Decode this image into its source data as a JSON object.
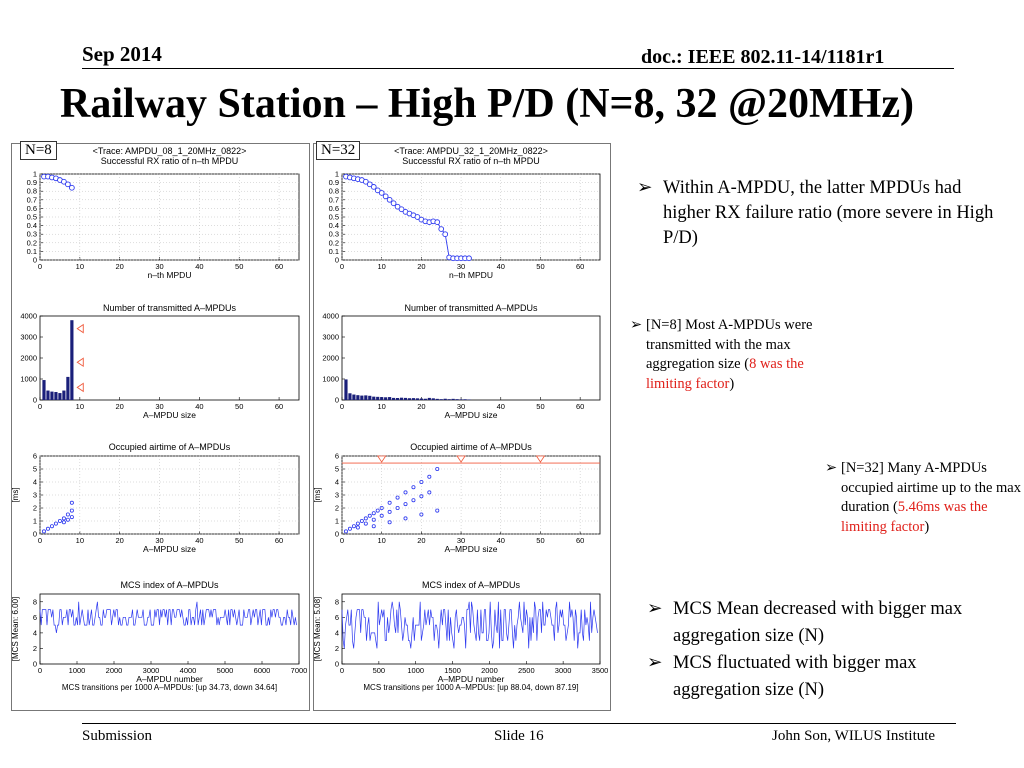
{
  "header": {
    "date": "Sep 2014",
    "doc": "doc.: IEEE 802.11-14/1181r1"
  },
  "title": "Railway Station – High P/D (N=8, 32 @20MHz)",
  "tags": {
    "left": "N=8",
    "right": "N=32"
  },
  "colors": {
    "series": "#2d39f0",
    "bar": "#1a1f7a",
    "accent_red": "#e0201a",
    "marker": "#f05a3c"
  },
  "bullets": {
    "b1": "Within A-MPDU, the latter MPDUs had higher RX failure ratio (more severe in High P/D)",
    "b2_pre": "[N=8] Most A-MPDUs were transmitted with the max aggregation size (",
    "b2_red": "8 was the limiting factor",
    "b2_post": ")",
    "b3_pre": "[N=32] Many A-MPDUs occupied airtime up to the max duration (",
    "b3_red": "5.46ms was the limiting factor",
    "b3_post": ")",
    "b4": "MCS Mean decreased with bigger max aggregation size (N)",
    "b5": "MCS fluctuated with bigger max aggregation size (N)"
  },
  "footer": {
    "left": "Submission",
    "center": "Slide 16",
    "right": "John Son, WILUS Institute"
  },
  "chart_data": [
    {
      "type": "scatter",
      "panel": "N=8",
      "title": "<Trace: AMPDU_08_1_20MHz_0822>",
      "subtitle": "Successful RX ratio of n–th MPDU",
      "xlabel": "n–th MPDU",
      "ylabel": "",
      "xlim": [
        0,
        65
      ],
      "ylim": [
        0,
        1
      ],
      "xticks": [
        "0",
        "10",
        "20",
        "30",
        "40",
        "50",
        "60"
      ],
      "yticks": [
        "0",
        "0.1",
        "0.2",
        "0.3",
        "0.4",
        "0.5",
        "0.6",
        "0.7",
        "0.8",
        "0.9",
        "1"
      ],
      "x": [
        1,
        2,
        3,
        4,
        5,
        6,
        7,
        8
      ],
      "y": [
        0.97,
        0.97,
        0.96,
        0.95,
        0.93,
        0.91,
        0.88,
        0.84
      ]
    },
    {
      "type": "scatter",
      "panel": "N=32",
      "title": "<Trace: AMPDU_32_1_20MHz_0822>",
      "subtitle": "Successful RX ratio of n–th MPDU",
      "xlabel": "n–th MPDU",
      "ylabel": "",
      "xlim": [
        0,
        65
      ],
      "ylim": [
        0,
        1
      ],
      "xticks": [
        "0",
        "10",
        "20",
        "30",
        "40",
        "50",
        "60"
      ],
      "yticks": [
        "0",
        "0.1",
        "0.2",
        "0.3",
        "0.4",
        "0.5",
        "0.6",
        "0.7",
        "0.8",
        "0.9",
        "1"
      ],
      "x": [
        1,
        2,
        3,
        4,
        5,
        6,
        7,
        8,
        9,
        10,
        11,
        12,
        13,
        14,
        15,
        16,
        17,
        18,
        19,
        20,
        21,
        22,
        23,
        24,
        25,
        26,
        27,
        28,
        29,
        30,
        31,
        32
      ],
      "y": [
        0.97,
        0.96,
        0.95,
        0.94,
        0.93,
        0.91,
        0.88,
        0.85,
        0.81,
        0.78,
        0.74,
        0.7,
        0.66,
        0.62,
        0.59,
        0.56,
        0.54,
        0.52,
        0.5,
        0.47,
        0.45,
        0.44,
        0.45,
        0.44,
        0.36,
        0.3,
        0.03,
        0.02,
        0.02,
        0.02,
        0.02,
        0.02
      ]
    },
    {
      "type": "bar",
      "panel": "N=8",
      "title": "Number of transmitted A–MPDUs",
      "xlabel": "A–MPDU size",
      "ylabel": "",
      "xlim": [
        0,
        65
      ],
      "ylim": [
        0,
        4000
      ],
      "xticks": [
        "0",
        "10",
        "20",
        "30",
        "40",
        "50",
        "60"
      ],
      "yticks": [
        "0",
        "1000",
        "2000",
        "3000",
        "4000"
      ],
      "x": [
        1,
        2,
        3,
        4,
        5,
        6,
        7,
        8
      ],
      "values": [
        950,
        450,
        400,
        380,
        330,
        450,
        1100,
        3800
      ]
    },
    {
      "type": "bar",
      "panel": "N=32",
      "title": "Number of transmitted A–MPDUs",
      "xlabel": "A–MPDU size",
      "ylabel": "",
      "xlim": [
        0,
        65
      ],
      "ylim": [
        0,
        4000
      ],
      "xticks": [
        "0",
        "10",
        "20",
        "30",
        "40",
        "50",
        "60"
      ],
      "yticks": [
        "0",
        "1000",
        "2000",
        "3000",
        "4000"
      ],
      "x": [
        1,
        2,
        3,
        4,
        5,
        6,
        7,
        8,
        9,
        10,
        11,
        12,
        13,
        14,
        15,
        16,
        17,
        18,
        19,
        20,
        21,
        22,
        23,
        24,
        25,
        26,
        27,
        28,
        29,
        30,
        31,
        32
      ],
      "values": [
        980,
        320,
        260,
        230,
        210,
        220,
        200,
        160,
        150,
        140,
        130,
        140,
        100,
        95,
        110,
        100,
        85,
        90,
        80,
        70,
        60,
        100,
        80,
        55,
        40,
        60,
        40,
        55,
        40,
        30,
        35,
        25
      ]
    },
    {
      "type": "scatter",
      "panel": "N=8",
      "title": "Occupied airtime of A–MPDUs",
      "xlabel": "A–MPDU size",
      "ylabel": "[ms]",
      "xlim": [
        0,
        65
      ],
      "ylim": [
        0,
        6
      ],
      "xticks": [
        "0",
        "10",
        "20",
        "30",
        "40",
        "50",
        "60"
      ],
      "yticks": [
        "0",
        "1",
        "2",
        "3",
        "4",
        "5",
        "6"
      ],
      "x": [
        1,
        2,
        3,
        4,
        5,
        6,
        7,
        8,
        8,
        8,
        7,
        6
      ],
      "y": [
        0.2,
        0.4,
        0.6,
        0.8,
        1.0,
        1.2,
        1.5,
        1.8,
        2.4,
        1.3,
        1.1,
        0.9
      ]
    },
    {
      "type": "scatter",
      "panel": "N=32",
      "title": "Occupied airtime of A–MPDUs",
      "xlabel": "A–MPDU size",
      "ylabel": "[ms]",
      "xlim": [
        0,
        65
      ],
      "ylim": [
        0,
        6
      ],
      "xticks": [
        "0",
        "10",
        "20",
        "30",
        "40",
        "50",
        "60"
      ],
      "yticks": [
        "0",
        "1",
        "2",
        "3",
        "4",
        "5",
        "6"
      ],
      "limit_ms": 5.46,
      "x": [
        1,
        2,
        3,
        4,
        5,
        6,
        7,
        8,
        9,
        10,
        12,
        14,
        16,
        18,
        20,
        22,
        24,
        4,
        6,
        8,
        10,
        12,
        14,
        16,
        18,
        20,
        22,
        8,
        12,
        16,
        20,
        24
      ],
      "y": [
        0.2,
        0.4,
        0.6,
        0.8,
        1.0,
        1.2,
        1.4,
        1.6,
        1.8,
        2.0,
        2.4,
        2.8,
        3.2,
        3.6,
        4.0,
        4.4,
        5.0,
        0.5,
        0.8,
        1.1,
        1.4,
        1.7,
        2.0,
        2.3,
        2.6,
        2.9,
        3.2,
        0.6,
        0.9,
        1.2,
        1.5,
        1.8
      ]
    },
    {
      "type": "line",
      "panel": "N=8",
      "title": "MCS index of A–MPDUs",
      "xlabel": "A–MPDU number",
      "ylabel": "[MCS Mean: 6.00]",
      "footnote": "MCS transitions per 1000 A–MPDUs: [up 34.73, down 34.64]",
      "xlim": [
        0,
        7000
      ],
      "ylim": [
        0,
        9
      ],
      "xticks": [
        "0",
        "1000",
        "2000",
        "3000",
        "4000",
        "5000",
        "6000",
        "7000"
      ],
      "yticks": [
        "0",
        "2",
        "4",
        "6",
        "8"
      ],
      "mean": 6.0
    },
    {
      "type": "line",
      "panel": "N=32",
      "title": "MCS index of A–MPDUs",
      "xlabel": "A–MPDU number",
      "ylabel": "[MCS Mean: 5.08]",
      "footnote": "MCS transitions per 1000 A–MPDUs: [up 88.04, down 87.19]",
      "xlim": [
        0,
        3600
      ],
      "ylim": [
        0,
        9
      ],
      "xticks": [
        "0",
        "500",
        "1000",
        "1500",
        "2000",
        "2500",
        "3000",
        "3500"
      ],
      "yticks": [
        "0",
        "2",
        "4",
        "6",
        "8"
      ],
      "mean": 5.08
    }
  ]
}
